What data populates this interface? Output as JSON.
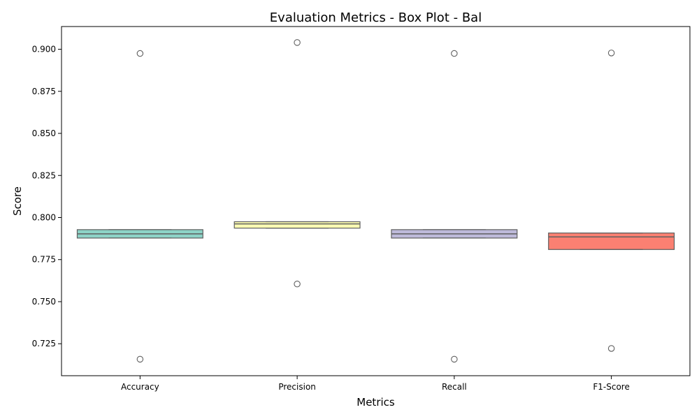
{
  "chart_data": {
    "type": "box",
    "title": "Evaluation Metrics - Box Plot - Bal",
    "xlabel": "Metrics",
    "ylabel": "Score",
    "ylim": [
      0.706,
      0.9135
    ],
    "yticks": [
      0.725,
      0.75,
      0.775,
      0.8,
      0.825,
      0.85,
      0.875,
      0.9
    ],
    "ytick_labels": [
      "0.725",
      "0.750",
      "0.775",
      "0.800",
      "0.825",
      "0.850",
      "0.875",
      "0.900"
    ],
    "grid": false,
    "legend": "none",
    "categories": [
      "Accuracy",
      "Precision",
      "Recall",
      "F1-Score"
    ],
    "boxes": [
      {
        "category": "Accuracy",
        "q1": 0.7878,
        "median": 0.7903,
        "q3": 0.7928,
        "whisker_low": 0.7878,
        "whisker_high": 0.7928,
        "outliers": [
          0.8975,
          0.7158
        ],
        "color": "#8dd3c7"
      },
      {
        "category": "Precision",
        "q1": 0.7937,
        "median": 0.7962,
        "q3": 0.7975,
        "whisker_low": 0.7937,
        "whisker_high": 0.7975,
        "outliers": [
          0.904,
          0.7605
        ],
        "color": "#ffffb3"
      },
      {
        "category": "Recall",
        "q1": 0.7878,
        "median": 0.7903,
        "q3": 0.7928,
        "whisker_low": 0.7878,
        "whisker_high": 0.7928,
        "outliers": [
          0.8975,
          0.7158
        ],
        "color": "#bebada"
      },
      {
        "category": "F1-Score",
        "q1": 0.781,
        "median": 0.7885,
        "q3": 0.7908,
        "whisker_low": 0.781,
        "whisker_high": 0.7908,
        "outliers": [
          0.8978,
          0.7222
        ],
        "color": "#fb8072"
      }
    ]
  }
}
